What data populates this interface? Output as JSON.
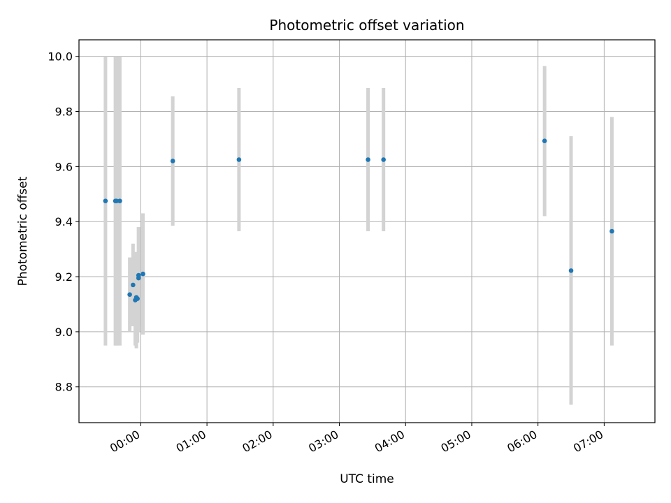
{
  "chart_data": {
    "type": "scatter",
    "title": "Photometric offset variation",
    "xlabel": "UTC time",
    "ylabel": "Photometric offset",
    "grid": true,
    "x_axis_kind": "time",
    "x_tick_labels": [
      "00:00",
      "01:00",
      "02:00",
      "03:00",
      "04:00",
      "05:00",
      "06:00",
      "07:00"
    ],
    "y_tick_labels": [
      "8.8",
      "9.0",
      "9.2",
      "9.4",
      "9.6",
      "9.8",
      "10.0"
    ],
    "xlim": [
      "-00:56",
      "07:46"
    ],
    "ylim": [
      8.67,
      10.06
    ],
    "colors": {
      "point": "#1f77b4",
      "errorbar": "#d3d3d3",
      "grid": "#b0b0b0"
    },
    "series": [
      {
        "points": [
          {
            "x": "-00:32",
            "y": 9.475,
            "ylow": 8.95,
            "yhigh": 10.0
          },
          {
            "x": "-00:23",
            "y": 9.475,
            "ylow": 8.95,
            "yhigh": 10.0
          },
          {
            "x": "-00:22",
            "y": 9.475,
            "ylow": 8.95,
            "yhigh": 10.0
          },
          {
            "x": "-00:19",
            "y": 9.475,
            "ylow": 8.95,
            "yhigh": 10.0
          },
          {
            "x": "-00:10",
            "y": 9.135,
            "ylow": 9.0,
            "yhigh": 9.27
          },
          {
            "x": "-00:07",
            "y": 9.17,
            "ylow": 9.02,
            "yhigh": 9.32
          },
          {
            "x": "-00:05",
            "y": 9.115,
            "ylow": 8.95,
            "yhigh": 9.28
          },
          {
            "x": "-00:04",
            "y": 9.125,
            "ylow": 8.94,
            "yhigh": 9.29
          },
          {
            "x": "-00:03",
            "y": 9.12,
            "ylow": 8.96,
            "yhigh": 9.28
          },
          {
            "x": "-00:02",
            "y": 9.195,
            "ylow": 9.0,
            "yhigh": 9.38
          },
          {
            "x": "-00:02",
            "y": 9.205,
            "ylow": 9.02,
            "yhigh": 9.38
          },
          {
            "x": "00:02",
            "y": 9.21,
            "ylow": 8.99,
            "yhigh": 9.43
          },
          {
            "x": "00:29",
            "y": 9.62,
            "ylow": 9.385,
            "yhigh": 9.855
          },
          {
            "x": "01:29",
            "y": 9.625,
            "ylow": 9.365,
            "yhigh": 9.885
          },
          {
            "x": "03:26",
            "y": 9.625,
            "ylow": 9.365,
            "yhigh": 9.885
          },
          {
            "x": "03:40",
            "y": 9.625,
            "ylow": 9.365,
            "yhigh": 9.885
          },
          {
            "x": "06:06",
            "y": 9.693,
            "ylow": 9.42,
            "yhigh": 9.965
          },
          {
            "x": "06:30",
            "y": 9.222,
            "ylow": 8.735,
            "yhigh": 9.71
          },
          {
            "x": "07:07",
            "y": 9.365,
            "ylow": 8.95,
            "yhigh": 9.78
          }
        ]
      }
    ]
  }
}
